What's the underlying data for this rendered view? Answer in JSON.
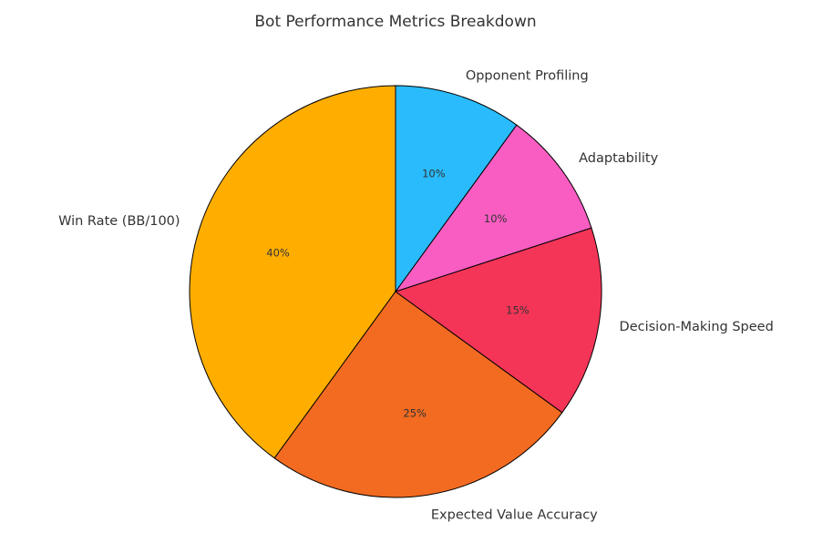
{
  "chart_data": {
    "type": "pie",
    "title": "Bot Performance Metrics Breakdown",
    "categories": [
      "Win Rate (BB/100)",
      "Expected Value Accuracy",
      "Decision-Making Speed",
      "Adaptability",
      "Opponent Profiling"
    ],
    "values": [
      40,
      25,
      15,
      10,
      10
    ],
    "value_labels": [
      "40%",
      "25%",
      "15%",
      "10%",
      "10%"
    ],
    "colors": [
      "#ffae00",
      "#f26b21",
      "#f43558",
      "#f95dc2",
      "#29bbfc"
    ]
  }
}
